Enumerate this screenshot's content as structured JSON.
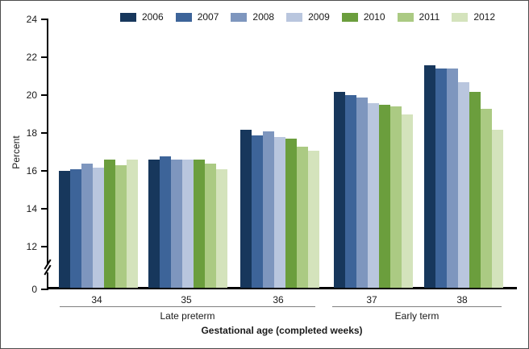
{
  "figure": {
    "background": "#ffffff",
    "border_color": "#4d4d4d",
    "axis_color": "#000000",
    "group_rule_color": "#808080"
  },
  "chart_data": {
    "type": "bar",
    "title": "",
    "ylabel": "Percent",
    "xlabel": "Gestational age (completed weeks)",
    "legend_position": "top",
    "grid": false,
    "categories": [
      "34",
      "35",
      "36",
      "37",
      "38"
    ],
    "category_groups": [
      {
        "label": "Late preterm",
        "span": [
          "34",
          "36"
        ]
      },
      {
        "label": "Early term",
        "span": [
          "37",
          "38"
        ]
      }
    ],
    "series": [
      {
        "name": "2006",
        "color": "#17375c",
        "values": [
          15.9,
          16.5,
          18.1,
          20.1,
          21.5
        ]
      },
      {
        "name": "2007",
        "color": "#3d6499",
        "values": [
          16.0,
          16.7,
          17.8,
          19.9,
          21.3
        ]
      },
      {
        "name": "2008",
        "color": "#7e96be",
        "values": [
          16.3,
          16.5,
          18.0,
          19.8,
          21.3
        ]
      },
      {
        "name": "2009",
        "color": "#b9c6de",
        "values": [
          16.1,
          16.5,
          17.7,
          19.5,
          20.6
        ]
      },
      {
        "name": "2010",
        "color": "#6b9e3d",
        "values": [
          16.5,
          16.5,
          17.6,
          19.4,
          20.1
        ]
      },
      {
        "name": "2011",
        "color": "#abca83",
        "values": [
          16.2,
          16.3,
          17.2,
          19.3,
          19.2
        ]
      },
      {
        "name": "2012",
        "color": "#d4e3bc",
        "values": [
          16.5,
          16.0,
          17.0,
          18.9,
          18.1
        ]
      }
    ],
    "y_axis": {
      "ticks": [
        0,
        12,
        14,
        16,
        18,
        20,
        22,
        24
      ],
      "ylim": [
        0,
        24
      ],
      "break_between": [
        0,
        12
      ]
    }
  }
}
